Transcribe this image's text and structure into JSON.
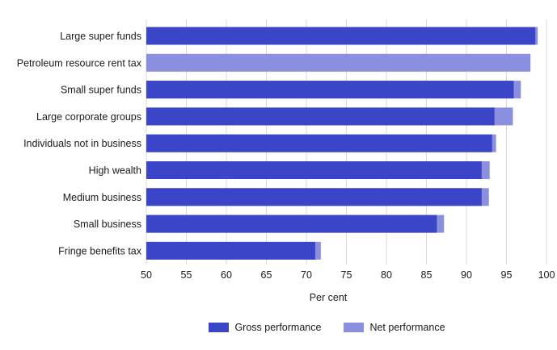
{
  "chart_data": {
    "type": "bar",
    "orientation": "horizontal",
    "stacked": "overlay",
    "title": "",
    "xlabel": "Per cent",
    "ylabel": "",
    "xlim": [
      50,
      100
    ],
    "xticks": [
      "50",
      "55",
      "60",
      "65",
      "70",
      "75",
      "80",
      "85",
      "90",
      "95",
      "100"
    ],
    "grid": "vertical",
    "legend_position": "bottom",
    "categories": [
      "Large super funds",
      "Petroleum resource rent tax",
      "Small super funds",
      "Large corporate groups",
      "Individuals not in business",
      "High wealth",
      "Medium business",
      "Small business",
      "Fringe benefits tax"
    ],
    "series": [
      {
        "name": "Gross performance",
        "color": "#3a45c8",
        "values": [
          98.6,
          null,
          95.9,
          93.5,
          93.2,
          91.9,
          91.9,
          86.3,
          71.1
        ]
      },
      {
        "name": "Net performance",
        "color": "#8a8fe0",
        "values": [
          98.9,
          98.0,
          96.8,
          95.8,
          93.7,
          92.9,
          92.8,
          87.2,
          71.8
        ]
      }
    ]
  }
}
